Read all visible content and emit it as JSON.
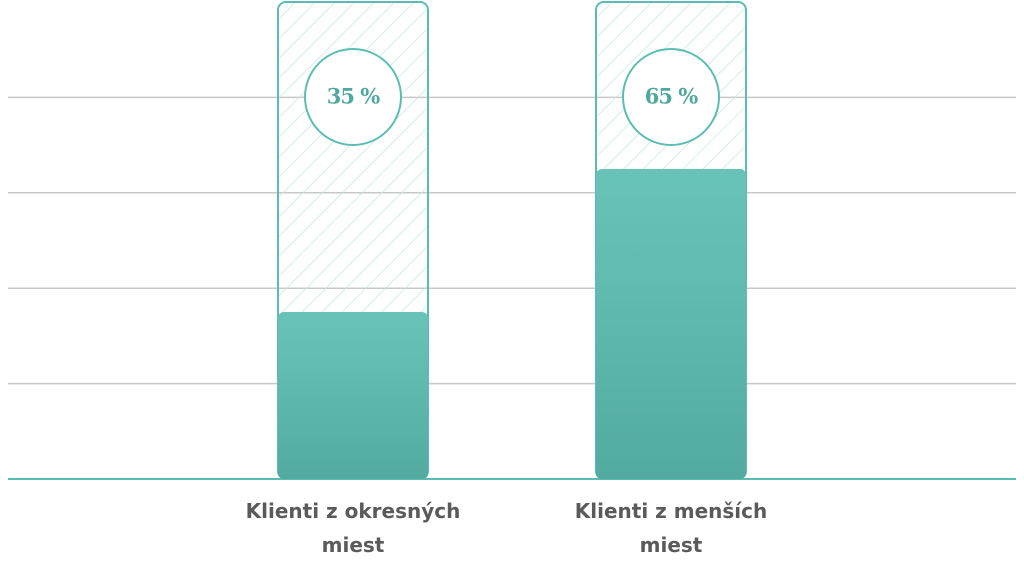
{
  "chart_data": {
    "type": "bar",
    "categories": [
      "Klienti z okresných miest",
      "Klienti z menších miest"
    ],
    "values": [
      35,
      65
    ],
    "value_labels": [
      "35 %",
      "65 %"
    ],
    "color": "#5bbdb2",
    "ylim": [
      0,
      100
    ],
    "yticks": [
      0,
      20,
      40,
      60,
      80
    ],
    "grid": true
  }
}
